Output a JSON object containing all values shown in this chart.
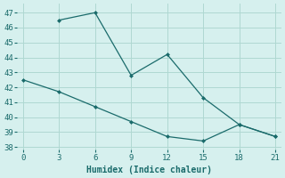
{
  "line1_x": [
    3,
    6,
    9,
    12,
    15,
    18,
    21
  ],
  "line1_y": [
    46.5,
    47.0,
    42.8,
    44.2,
    41.3,
    39.5,
    38.7
  ],
  "line2_x": [
    0,
    3,
    6,
    9,
    12,
    15,
    18,
    21
  ],
  "line2_y": [
    42.5,
    41.7,
    40.7,
    39.7,
    38.7,
    38.4,
    39.5,
    38.7
  ],
  "color": "#1a6b6b",
  "bg_color": "#d6f0ee",
  "grid_color": "#afd8d2",
  "xlabel": "Humidex (Indice chaleur)",
  "xlim": [
    -0.5,
    21.5
  ],
  "ylim": [
    37.8,
    47.6
  ],
  "xticks": [
    0,
    3,
    6,
    9,
    12,
    15,
    18,
    21
  ],
  "yticks": [
    38,
    39,
    40,
    41,
    42,
    43,
    44,
    45,
    46,
    47
  ],
  "xlabel_fontsize": 7,
  "tick_fontsize": 6.5
}
